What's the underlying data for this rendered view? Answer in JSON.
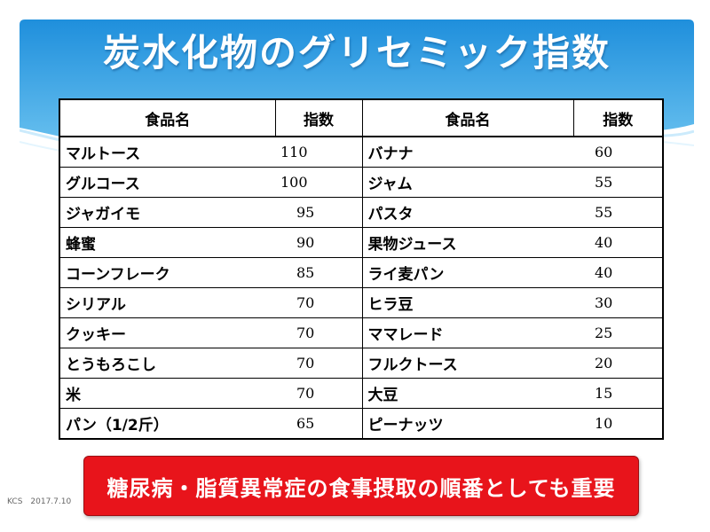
{
  "title": "炭水化物のグリセミック指数",
  "table": {
    "headers": [
      "食品名",
      "指数",
      "食品名",
      "指数"
    ],
    "rows": [
      [
        "マルトース",
        "110",
        "バナナ",
        "60"
      ],
      [
        "グルコース",
        "100",
        "ジャム",
        "55"
      ],
      [
        "ジャガイモ",
        "95",
        "パスタ",
        "55"
      ],
      [
        "蜂蜜",
        "90",
        "果物ジュース",
        "40"
      ],
      [
        "コーンフレーク",
        "85",
        "ライ麦パン",
        "40"
      ],
      [
        "シリアル",
        "70",
        "ヒラ豆",
        "30"
      ],
      [
        "クッキー",
        "70",
        "ママレード",
        "25"
      ],
      [
        "とうもろこし",
        "70",
        "フルクトース",
        "20"
      ],
      [
        "米",
        "70",
        "大豆",
        "15"
      ],
      [
        "パン（1/2斤）",
        "65",
        "ピーナッツ",
        "10"
      ]
    ]
  },
  "note": "糖尿病・脂質異常症の食事摂取の順番としても重要",
  "footer": "KCS　2017.7.10",
  "colors": {
    "header_blue": "#2f9ae0",
    "note_red": "#e8141b"
  }
}
